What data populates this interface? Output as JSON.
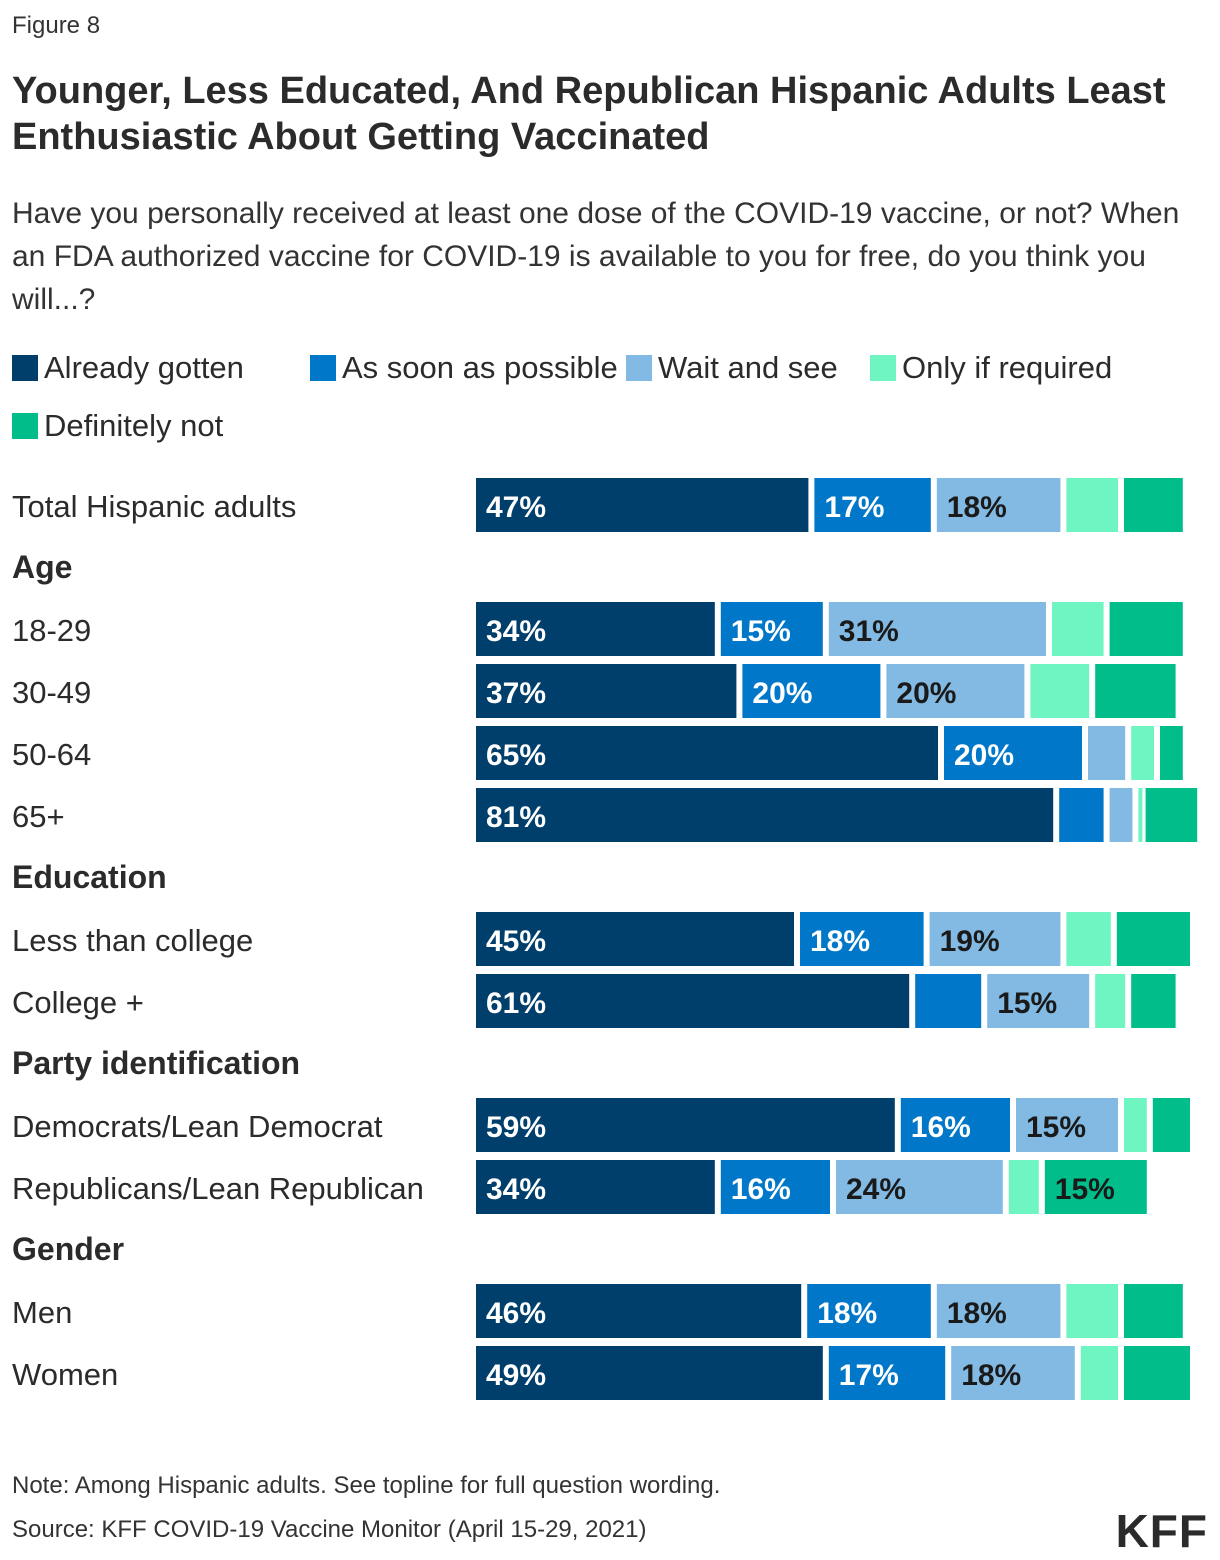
{
  "figure_label": "Figure 8",
  "title": "Younger, Less Educated, And Republican Hispanic Adults Least Enthusiastic About Getting Vaccinated",
  "subtitle": "Have you personally received at least one dose of the COVID-19 vaccine, or not? When an FDA authorized vaccine for COVID-19 is available to you for free, do you think you will...?",
  "note": "Note: Among Hispanic adults. See topline for full question wording.",
  "source": "Source: KFF COVID-19 Vaccine Monitor (April 15-29, 2021)",
  "logo": "KFF",
  "chart_data": {
    "type": "bar",
    "orientation": "horizontal",
    "stacked": true,
    "unit": "%",
    "series": [
      {
        "name": "Already gotten",
        "color": "#003f6b",
        "label_color": "#ffffff"
      },
      {
        "name": "As soon as possible",
        "color": "#0077c8",
        "label_color": "#ffffff"
      },
      {
        "name": "Wait and see",
        "color": "#82bae3",
        "label_color": "#1a1a1a"
      },
      {
        "name": "Only if required",
        "color": "#6ef5c1",
        "label_color": "#1a1a1a"
      },
      {
        "name": "Definitely not",
        "color": "#00bd8a",
        "label_color": "#1a1a1a"
      }
    ],
    "rows": [
      {
        "kind": "bar",
        "label": "Total Hispanic adults",
        "values": [
          47,
          17,
          18,
          8,
          9
        ],
        "labels": [
          "47%",
          "17%",
          "18%",
          "",
          ""
        ]
      },
      {
        "kind": "header",
        "label": "Age"
      },
      {
        "kind": "bar",
        "label": "18-29",
        "values": [
          34,
          15,
          31,
          8,
          11
        ],
        "labels": [
          "34%",
          "15%",
          "31%",
          "",
          ""
        ]
      },
      {
        "kind": "bar",
        "label": "30-49",
        "values": [
          37,
          20,
          20,
          9,
          12
        ],
        "labels": [
          "37%",
          "20%",
          "20%",
          "",
          ""
        ]
      },
      {
        "kind": "bar",
        "label": "50-64",
        "values": [
          65,
          20,
          6,
          4,
          4
        ],
        "labels": [
          "65%",
          "20%",
          "",
          "",
          ""
        ]
      },
      {
        "kind": "bar",
        "label": "65+",
        "values": [
          81,
          7,
          4,
          1,
          8
        ],
        "labels": [
          "81%",
          "",
          "",
          "",
          ""
        ]
      },
      {
        "kind": "header",
        "label": "Education"
      },
      {
        "kind": "bar",
        "label": "Less than college",
        "values": [
          45,
          18,
          19,
          7,
          11
        ],
        "labels": [
          "45%",
          "18%",
          "19%",
          "",
          ""
        ]
      },
      {
        "kind": "bar",
        "label": "College +",
        "values": [
          61,
          10,
          15,
          5,
          7
        ],
        "labels": [
          "61%",
          "",
          "15%",
          "",
          ""
        ]
      },
      {
        "kind": "header",
        "label": "Party identification"
      },
      {
        "kind": "bar",
        "label": "Democrats/Lean Democrat",
        "values": [
          59,
          16,
          15,
          4,
          6
        ],
        "labels": [
          "59%",
          "16%",
          "15%",
          "",
          ""
        ]
      },
      {
        "kind": "bar",
        "label": "Republicans/Lean Republican",
        "values": [
          34,
          16,
          24,
          5,
          15
        ],
        "labels": [
          "34%",
          "16%",
          "24%",
          "",
          "15%"
        ]
      },
      {
        "kind": "header",
        "label": "Gender"
      },
      {
        "kind": "bar",
        "label": "Men",
        "values": [
          46,
          18,
          18,
          8,
          9
        ],
        "labels": [
          "46%",
          "18%",
          "18%",
          "",
          ""
        ]
      },
      {
        "kind": "bar",
        "label": "Women",
        "values": [
          49,
          17,
          18,
          6,
          10
        ],
        "labels": [
          "49%",
          "17%",
          "18%",
          "",
          ""
        ]
      }
    ]
  }
}
